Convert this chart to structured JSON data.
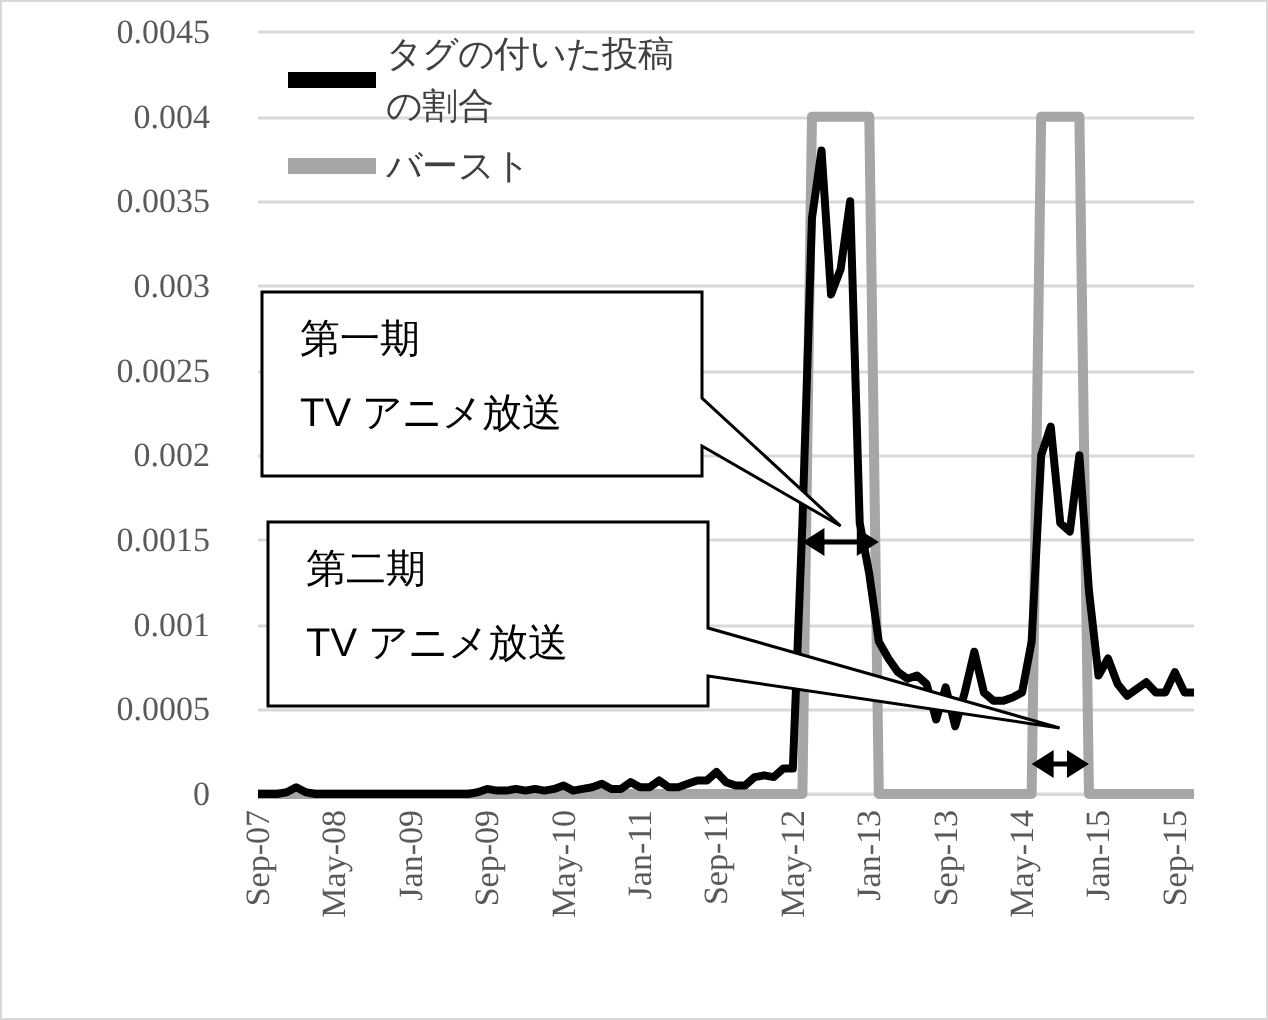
{
  "chart_data": {
    "type": "line",
    "categories": [
      "Sep-07",
      null,
      null,
      null,
      null,
      null,
      null,
      null,
      "May-08",
      null,
      null,
      null,
      null,
      null,
      null,
      null,
      "Jan-09",
      null,
      null,
      null,
      null,
      null,
      null,
      null,
      "Sep-09",
      null,
      null,
      null,
      null,
      null,
      null,
      null,
      "May-10",
      null,
      null,
      null,
      null,
      null,
      null,
      null,
      "Jan-11",
      null,
      null,
      null,
      null,
      null,
      null,
      null,
      "Sep-11",
      null,
      null,
      null,
      null,
      null,
      null,
      null,
      "May-12",
      null,
      null,
      null,
      null,
      null,
      null,
      null,
      "Jan-13",
      null,
      null,
      null,
      null,
      null,
      null,
      null,
      "Sep-13",
      null,
      null,
      null,
      null,
      null,
      null,
      null,
      "May-14",
      null,
      null,
      null,
      null,
      null,
      null,
      null,
      "Jan-15",
      null,
      null,
      null,
      null,
      null,
      null,
      null,
      "Sep-15",
      null,
      null
    ],
    "series": [
      {
        "name": "タグの付いた投稿の割合",
        "color": "#000000",
        "values": [
          0,
          0,
          0,
          1e-05,
          4e-05,
          1e-05,
          0,
          0,
          0,
          0,
          0,
          0,
          0,
          0,
          0,
          0,
          0,
          0,
          0,
          0,
          0,
          0,
          0,
          1e-05,
          3e-05,
          2e-05,
          2e-05,
          3e-05,
          2e-05,
          3e-05,
          2e-05,
          3e-05,
          5e-05,
          2e-05,
          3e-05,
          4e-05,
          6e-05,
          3e-05,
          3e-05,
          7e-05,
          4e-05,
          4e-05,
          8e-05,
          4e-05,
          4e-05,
          6e-05,
          8e-05,
          8e-05,
          0.00013,
          7e-05,
          5e-05,
          5e-05,
          0.0001,
          0.00011,
          0.0001,
          0.00015,
          0.00015,
          0.0016,
          0.0034,
          0.0038,
          0.00295,
          0.0031,
          0.0035,
          0.0016,
          0.0013,
          0.0009,
          0.0008,
          0.00072,
          0.00068,
          0.0007,
          0.00065,
          0.00044,
          0.00063,
          0.0004,
          0.0006,
          0.00084,
          0.0006,
          0.00055,
          0.00055,
          0.00057,
          0.0006,
          0.0009,
          0.002,
          0.00217,
          0.0016,
          0.00155,
          0.002,
          0.0012,
          0.0007,
          0.0008,
          0.00065,
          0.00058,
          0.00062,
          0.00066,
          0.0006,
          0.0006,
          0.00072,
          0.0006,
          0.0006
        ]
      },
      {
        "name": "バースト",
        "color": "#a6a6a6",
        "values": [
          0,
          0,
          0,
          0,
          0,
          0,
          0,
          0,
          0,
          0,
          0,
          0,
          0,
          0,
          0,
          0,
          0,
          0,
          0,
          0,
          0,
          0,
          0,
          0,
          0,
          0,
          0,
          0,
          0,
          0,
          0,
          0,
          0,
          0,
          0,
          0,
          0,
          0,
          0,
          0,
          0,
          0,
          0,
          0,
          0,
          0,
          0,
          0,
          0,
          0,
          0,
          0,
          0,
          0,
          0,
          0,
          0,
          0,
          0.004,
          0.004,
          0.004,
          0.004,
          0.004,
          0.004,
          0.004,
          0,
          0,
          0,
          0,
          0,
          0,
          0,
          0,
          0,
          0,
          0,
          0,
          0,
          0,
          0,
          0,
          0,
          0.004,
          0.004,
          0.004,
          0.004,
          0.004,
          0,
          0,
          0,
          0,
          0,
          0,
          0,
          0,
          0,
          0,
          0,
          0
        ]
      }
    ],
    "ylim": [
      0,
      0.0045
    ],
    "yticks": [
      0,
      0.0005,
      0.001,
      0.0015,
      0.002,
      0.0025,
      0.003,
      0.0035,
      0.004,
      0.0045
    ],
    "grid": "y",
    "legend": "top left",
    "marker": "none",
    "annotations": [
      "第一期\nTV アニメ放送",
      "第二期\nTV アニメ放送"
    ]
  }
}
